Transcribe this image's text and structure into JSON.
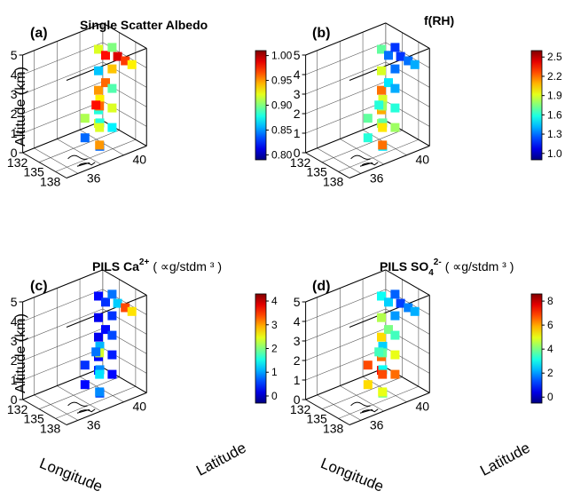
{
  "figure": {
    "axis_labels": {
      "altitude": "Altitude (km)",
      "longitude": "Longitude",
      "latitude": "Latitude"
    },
    "panels": [
      {
        "letter": "(a)",
        "title": "Single Scatter Albedo",
        "title_sup": "",
        "title_sub": "",
        "units": "",
        "colorbar": {
          "min": 0.79,
          "max": 1.01,
          "ticks": [
            "1.00",
            "0.95",
            "0.90",
            "0.85",
            "0.80"
          ],
          "tick_values": [
            1.0,
            0.95,
            0.9,
            0.85,
            0.8
          ]
        }
      },
      {
        "letter": "(b)",
        "title": "f(RH)",
        "title_sup": "",
        "title_sub": "",
        "units": "",
        "colorbar": {
          "min": 0.9,
          "max": 2.6,
          "ticks": [
            "2.5",
            "2.2",
            "1.9",
            "1.6",
            "1.3",
            "1.0"
          ],
          "tick_values": [
            2.5,
            2.2,
            1.9,
            1.6,
            1.3,
            1.0
          ]
        }
      },
      {
        "letter": "(c)",
        "title": "PILS Ca",
        "title_sup": "2+",
        "title_sub": "",
        "units": "( ∝g/stdm ³ )",
        "colorbar": {
          "min": -0.3,
          "max": 4.3,
          "ticks": [
            "4",
            "3",
            "2",
            "1",
            "0"
          ],
          "tick_values": [
            4,
            3,
            2,
            1,
            0
          ]
        }
      },
      {
        "letter": "(d)",
        "title": "PILS SO",
        "title_sup": "2-",
        "title_sub": "4",
        "units": "( ∝g/stdm ³ )",
        "colorbar": {
          "min": -0.5,
          "max": 8.6,
          "ticks": [
            "8",
            "6",
            "4",
            "2",
            "0"
          ],
          "tick_values": [
            8,
            6,
            4,
            2,
            0
          ]
        }
      }
    ]
  },
  "chart_data": [
    {
      "type": "scatter",
      "title": "Single Scatter Albedo",
      "zlabel": "Altitude (km)",
      "zlim": [
        0,
        5
      ],
      "z_ticks": [
        "0",
        "1",
        "2",
        "3",
        "4",
        "5"
      ],
      "xlim": [
        132,
        140
      ],
      "x_ticks": [
        "132",
        "135",
        "138"
      ],
      "ylim": [
        35,
        42
      ],
      "y_ticks": [
        "36",
        "40"
      ],
      "grid": true,
      "colorbar_range": [
        0.8,
        1.0
      ],
      "series": [
        {
          "values": [
            [
              133.3,
              41.0,
              4.1,
              0.92
            ],
            [
              133.3,
              41.0,
              3.0,
              0.86
            ],
            [
              133.3,
              41.0,
              2.0,
              0.95
            ],
            [
              133.3,
              41.0,
              1.0,
              0.88
            ],
            [
              133.3,
              41.0,
              0.3,
              0.92
            ],
            [
              134.6,
              41.0,
              2.6,
              0.96
            ],
            [
              134.6,
              41.0,
              4.0,
              0.98
            ],
            [
              135.8,
              41.0,
              4.6,
              0.9
            ],
            [
              135.8,
              41.0,
              3.5,
              0.94
            ],
            [
              135.8,
              41.0,
              2.5,
              0.89
            ],
            [
              135.8,
              41.0,
              1.5,
              0.92
            ],
            [
              135.8,
              41.0,
              0.5,
              0.87
            ],
            [
              136.8,
              41.0,
              4.3,
              0.99
            ],
            [
              138.2,
              41.0,
              4.3,
              0.97
            ],
            [
              139.4,
              41.0,
              4.3,
              0.93
            ],
            [
              134.6,
              39.2,
              1.2,
              0.91
            ],
            [
              134.6,
              39.2,
              0.2,
              0.84
            ],
            [
              137.3,
              39.2,
              0.2,
              0.84
            ],
            [
              137.3,
              39.2,
              1.4,
              0.88
            ],
            [
              137.3,
              39.2,
              2.6,
              0.93
            ],
            [
              138.5,
              38.6,
              2.6,
              0.96
            ],
            [
              138.5,
              38.6,
              1.5,
              0.92
            ],
            [
              138.5,
              38.6,
              0.6,
              0.95
            ],
            [
              136.6,
              39.2,
              2.2,
              0.98
            ]
          ]
        }
      ]
    },
    {
      "type": "scatter",
      "title": "f(RH)",
      "zlim": [
        0,
        5
      ],
      "z_ticks": [
        "0",
        "1",
        "2",
        "3",
        "4",
        "5"
      ],
      "xlim": [
        132,
        140
      ],
      "x_ticks": [
        "132",
        "135",
        "138"
      ],
      "ylim": [
        35,
        42
      ],
      "y_ticks": [
        "36",
        "40"
      ],
      "grid": true,
      "colorbar_range": [
        1.0,
        2.5
      ],
      "series": [
        {
          "values": [
            [
              133.3,
              41.0,
              4.1,
              1.7
            ],
            [
              133.3,
              41.0,
              3.0,
              1.9
            ],
            [
              133.3,
              41.0,
              2.0,
              2.2
            ],
            [
              133.3,
              41.0,
              1.0,
              2.1
            ],
            [
              133.3,
              41.0,
              0.3,
              1.8
            ],
            [
              134.6,
              41.0,
              2.6,
              1.5
            ],
            [
              134.6,
              41.0,
              4.0,
              1.3
            ],
            [
              135.8,
              41.0,
              4.6,
              1.2
            ],
            [
              135.8,
              41.0,
              3.5,
              1.3
            ],
            [
              135.8,
              41.0,
              2.5,
              1.4
            ],
            [
              135.8,
              41.0,
              1.5,
              1.6
            ],
            [
              135.8,
              41.0,
              0.5,
              1.8
            ],
            [
              136.8,
              41.0,
              4.3,
              1.2
            ],
            [
              138.2,
              41.0,
              4.3,
              1.3
            ],
            [
              139.4,
              41.0,
              4.3,
              1.4
            ],
            [
              134.6,
              39.2,
              1.2,
              1.7
            ],
            [
              134.6,
              39.2,
              0.2,
              1.6
            ],
            [
              137.3,
              39.2,
              0.2,
              1.5
            ],
            [
              137.3,
              39.2,
              1.4,
              1.7
            ],
            [
              137.3,
              39.2,
              2.6,
              1.9
            ],
            [
              138.5,
              38.6,
              2.6,
              1.8
            ],
            [
              138.5,
              38.6,
              1.5,
              2.0
            ],
            [
              138.5,
              38.6,
              0.6,
              2.2
            ],
            [
              136.6,
              39.2,
              2.2,
              1.6
            ]
          ]
        }
      ]
    },
    {
      "type": "scatter",
      "title": "PILS Ca2+",
      "zlabel": "Altitude (km)",
      "xlabel": "Longitude",
      "ylabel": "Latitude",
      "zlim": [
        0,
        5
      ],
      "z_ticks": [
        "0",
        "1",
        "2",
        "3",
        "4",
        "5"
      ],
      "xlim": [
        132,
        140
      ],
      "x_ticks": [
        "132",
        "135",
        "138"
      ],
      "ylim": [
        35,
        42
      ],
      "y_ticks": [
        "36",
        "40"
      ],
      "grid": true,
      "colorbar_range": [
        0,
        4
      ],
      "series": [
        {
          "values": [
            [
              133.3,
              41.0,
              4.1,
              0.3
            ],
            [
              133.3,
              41.0,
              3.0,
              0.2
            ],
            [
              133.3,
              41.0,
              2.0,
              0.2
            ],
            [
              133.3,
              41.0,
              1.0,
              0.3
            ],
            [
              133.3,
              41.0,
              0.3,
              0.4
            ],
            [
              134.6,
              41.0,
              2.6,
              0.3
            ],
            [
              134.6,
              41.0,
              4.0,
              0.5
            ],
            [
              135.8,
              41.0,
              4.6,
              0.8
            ],
            [
              135.8,
              41.0,
              3.5,
              0.5
            ],
            [
              135.8,
              41.0,
              2.5,
              0.6
            ],
            [
              135.8,
              41.0,
              1.5,
              0.4
            ],
            [
              135.8,
              41.0,
              0.5,
              0.3
            ],
            [
              136.8,
              41.0,
              4.3,
              1.2
            ],
            [
              138.2,
              41.0,
              4.3,
              3.4
            ],
            [
              139.4,
              41.0,
              4.3,
              2.7
            ],
            [
              134.6,
              39.2,
              1.2,
              0.5
            ],
            [
              134.6,
              39.2,
              0.2,
              0.3
            ],
            [
              137.3,
              39.2,
              0.2,
              0.6
            ],
            [
              137.3,
              39.2,
              1.4,
              0.9
            ],
            [
              137.3,
              39.2,
              2.6,
              1.1
            ],
            [
              138.5,
              38.6,
              2.6,
              2.4
            ],
            [
              138.5,
              38.6,
              1.5,
              1.3
            ],
            [
              138.5,
              38.6,
              0.6,
              0.9
            ],
            [
              136.6,
              39.2,
              2.2,
              0.8
            ]
          ]
        }
      ]
    },
    {
      "type": "scatter",
      "title": "PILS SO42-",
      "xlabel": "Longitude",
      "ylabel": "Latitude",
      "zlim": [
        0,
        5
      ],
      "z_ticks": [
        "0",
        "1",
        "2",
        "3",
        "4",
        "5"
      ],
      "xlim": [
        132,
        140
      ],
      "x_ticks": [
        "132",
        "135",
        "138"
      ],
      "ylim": [
        35,
        42
      ],
      "y_ticks": [
        "36",
        "40"
      ],
      "grid": true,
      "colorbar_range": [
        0,
        8
      ],
      "series": [
        {
          "values": [
            [
              133.3,
              41.0,
              4.1,
              3.0
            ],
            [
              133.3,
              41.0,
              3.0,
              4.5
            ],
            [
              133.3,
              41.0,
              2.0,
              5.5
            ],
            [
              133.3,
              41.0,
              1.0,
              6.5
            ],
            [
              133.3,
              41.0,
              0.3,
              7.5
            ],
            [
              134.6,
              41.0,
              2.6,
              4.0
            ],
            [
              134.6,
              41.0,
              4.0,
              2.5
            ],
            [
              135.8,
              41.0,
              4.6,
              1.5
            ],
            [
              135.8,
              41.0,
              3.5,
              2.0
            ],
            [
              135.8,
              41.0,
              2.5,
              3.5
            ],
            [
              135.8,
              41.0,
              1.5,
              5.0
            ],
            [
              135.8,
              41.0,
              0.5,
              6.5
            ],
            [
              136.8,
              41.0,
              4.3,
              1.2
            ],
            [
              138.2,
              41.0,
              4.3,
              1.8
            ],
            [
              139.4,
              41.0,
              4.3,
              2.2
            ],
            [
              134.6,
              39.2,
              1.2,
              6.8
            ],
            [
              134.6,
              39.2,
              0.2,
              5.5
            ],
            [
              137.3,
              39.2,
              0.2,
              4.0
            ],
            [
              137.3,
              39.2,
              1.4,
              3.0
            ],
            [
              137.3,
              39.2,
              2.6,
              2.5
            ],
            [
              138.5,
              38.6,
              2.6,
              3.8
            ],
            [
              138.5,
              38.6,
              1.5,
              6.8
            ],
            [
              138.5,
              38.6,
              0.6,
              5.0
            ],
            [
              136.6,
              39.2,
              2.2,
              3.5
            ]
          ]
        }
      ]
    }
  ]
}
